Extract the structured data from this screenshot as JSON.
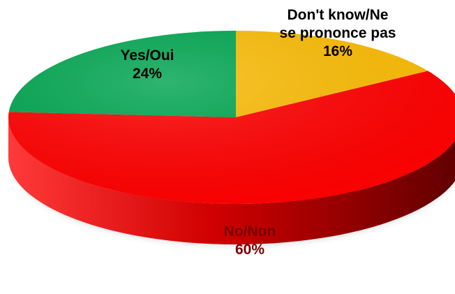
{
  "chart_data": {
    "type": "pie",
    "style": "3d",
    "start_angle_deg": 0,
    "direction": "clockwise",
    "slices": [
      {
        "label_lines": [
          "Don't know/Ne",
          "se prononce pas"
        ],
        "percent_label": "16%",
        "value": 16,
        "color": "#FBBC05",
        "label_color": "#000000"
      },
      {
        "label_lines": [
          "No/Non"
        ],
        "percent_label": "60%",
        "value": 60,
        "color": "#FF0000",
        "label_color": "#7A0000"
      },
      {
        "label_lines": [
          "Yes/Oui"
        ],
        "percent_label": "24%",
        "value": 24,
        "color": "#00A550",
        "label_color": "#000000"
      }
    ]
  }
}
